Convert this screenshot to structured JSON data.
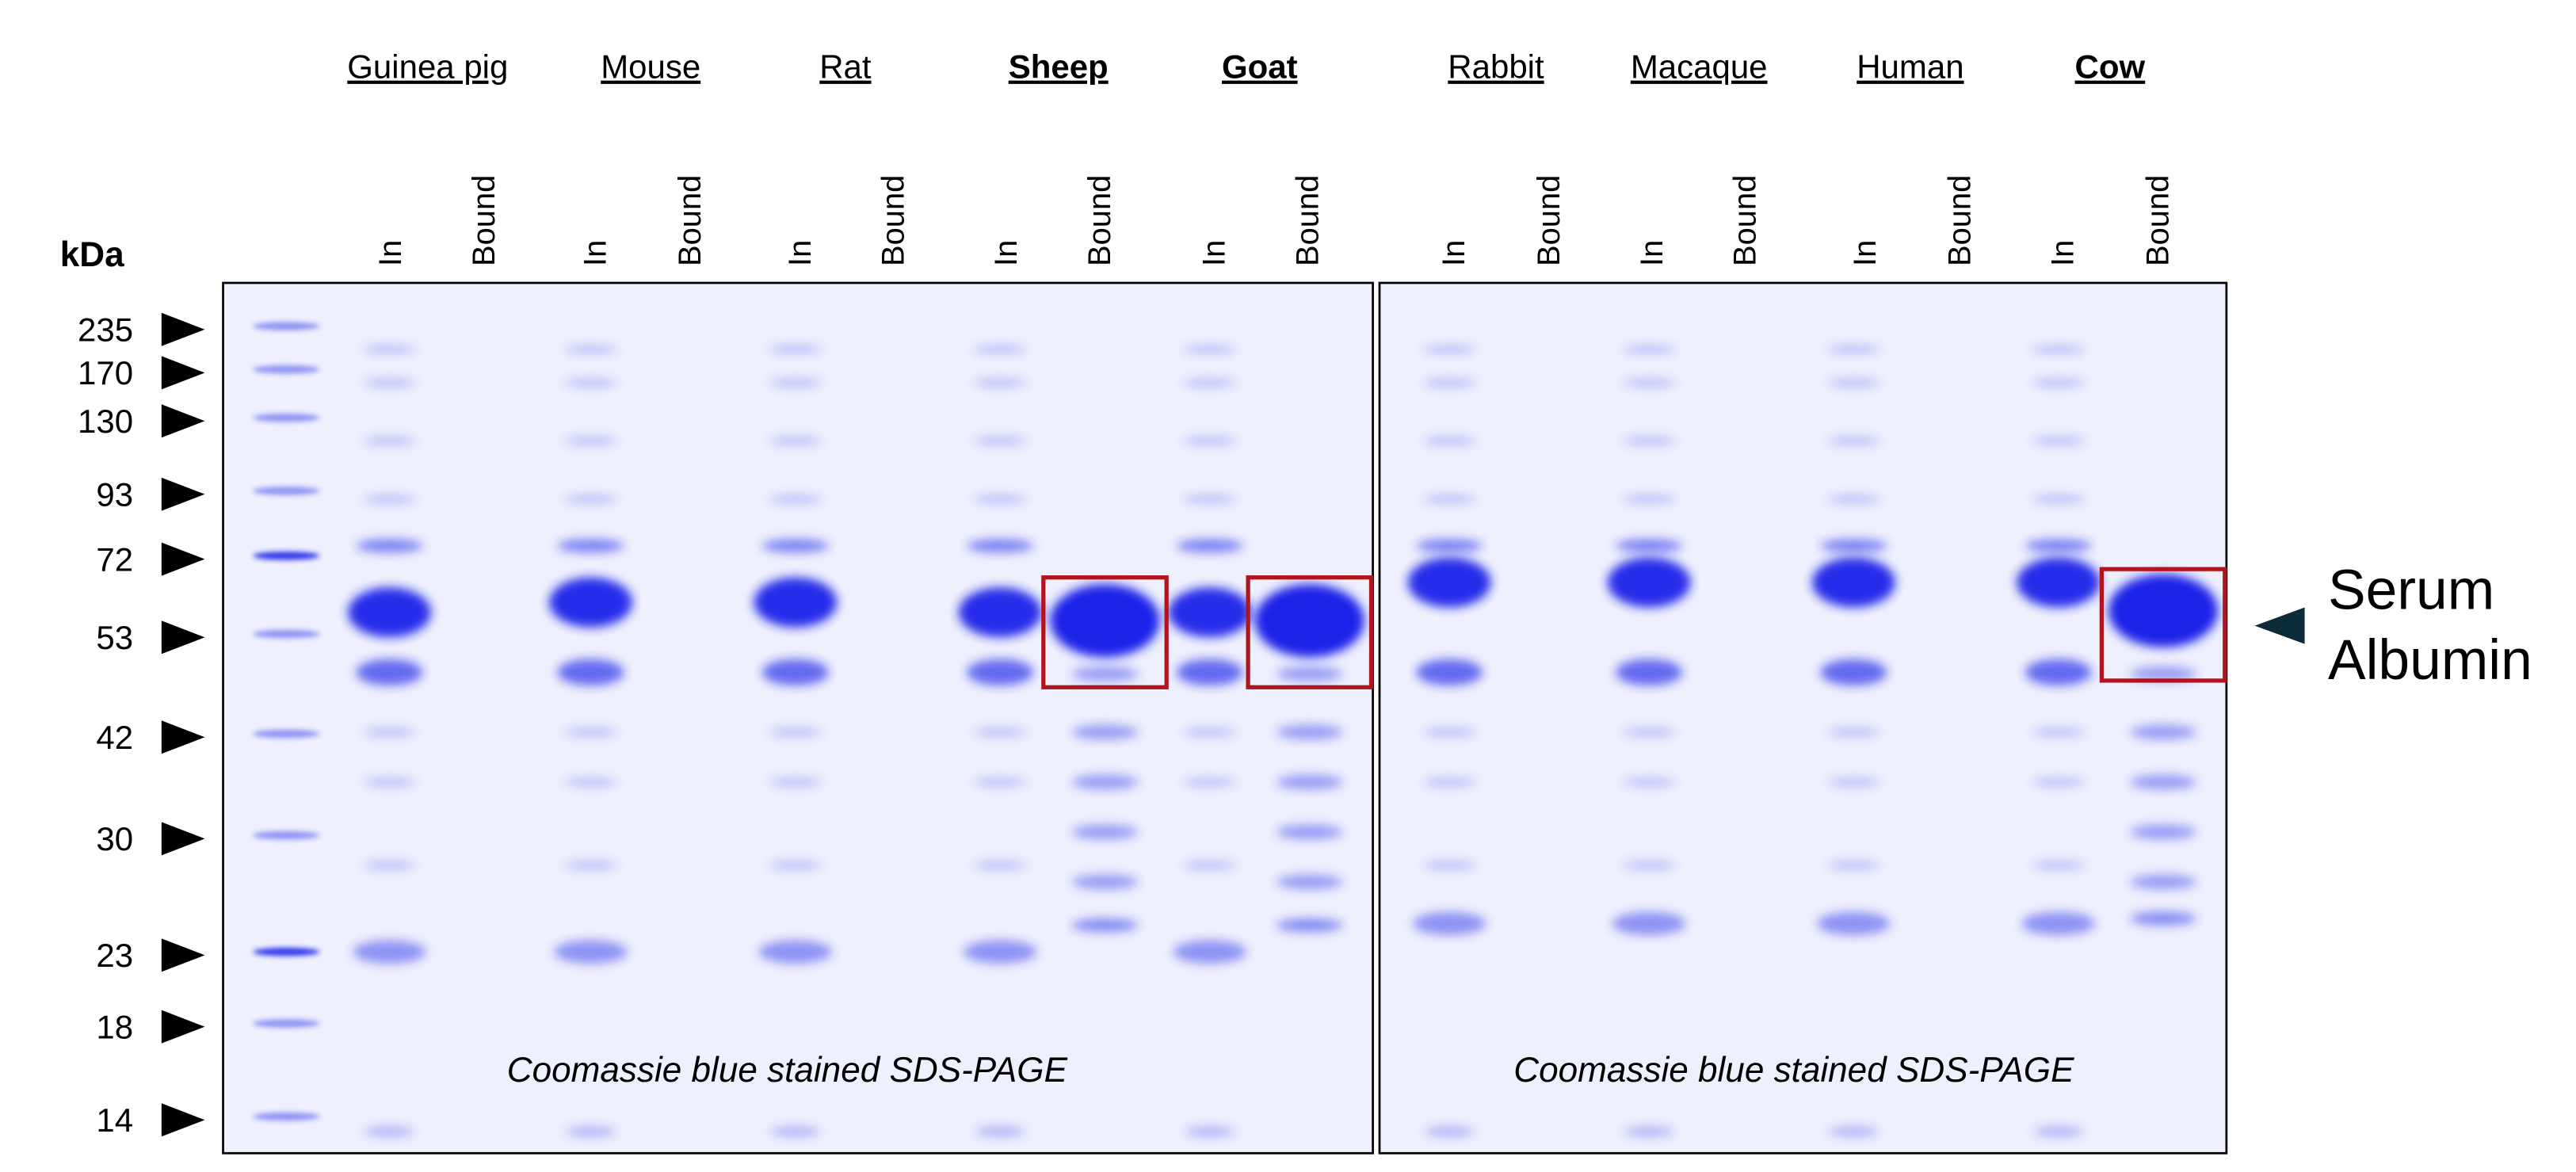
{
  "units_label": "kDa",
  "markers": [
    "235",
    "170",
    "130",
    "93",
    "72",
    "53",
    "42",
    "30",
    "23",
    "18",
    "14"
  ],
  "species": [
    {
      "name": "Guinea pig",
      "bold": false
    },
    {
      "name": "Mouse",
      "bold": false
    },
    {
      "name": "Rat",
      "bold": false
    },
    {
      "name": "Sheep",
      "bold": true
    },
    {
      "name": "Goat",
      "bold": true
    },
    {
      "name": "Rabbit",
      "bold": false
    },
    {
      "name": "Macaque",
      "bold": false
    },
    {
      "name": "Human",
      "bold": false
    },
    {
      "name": "Cow",
      "bold": true
    }
  ],
  "lanes": [
    "In",
    "Bound",
    "In",
    "Bound",
    "In",
    "Bound",
    "In",
    "Bound",
    "In",
    "Bound",
    "In",
    "Bound",
    "In",
    "Bound",
    "In",
    "Bound",
    "In",
    "Bound"
  ],
  "captions": [
    "Coomassie blue stained SDS-PAGE",
    "Coomassie blue stained SDS-PAGE"
  ],
  "annotation": [
    "Serum",
    "Albumin"
  ]
}
